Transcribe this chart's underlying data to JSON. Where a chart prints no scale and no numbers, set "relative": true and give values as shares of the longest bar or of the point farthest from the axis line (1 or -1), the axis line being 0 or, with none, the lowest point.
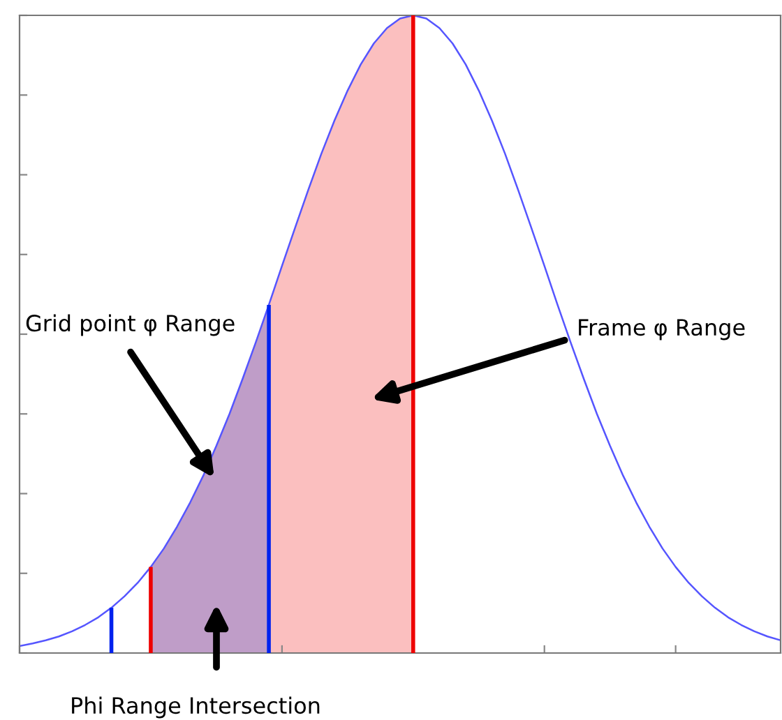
{
  "chart_data": {
    "type": "line",
    "relative": true,
    "legend": false,
    "grid": false,
    "categories": [
      null,
      null,
      null,
      null,
      null,
      null,
      null,
      null,
      null,
      null,
      null,
      null,
      null,
      null,
      null,
      null,
      null,
      null,
      null,
      null,
      null,
      null,
      null,
      null,
      null,
      null,
      null,
      null,
      null,
      null,
      null,
      null,
      null,
      null,
      null,
      null,
      null,
      null,
      null,
      null,
      null,
      null,
      null,
      null,
      null,
      null,
      null,
      null,
      null,
      null,
      null,
      null,
      null,
      null,
      null,
      null,
      null,
      null,
      null
    ],
    "series": [
      {
        "type": "area",
        "color": "#fbbfbf",
        "values": [
          null,
          null,
          null,
          null,
          null,
          null,
          null,
          null,
          null,
          null,
          0.135,
          0.164,
          0.198,
          0.236,
          0.278,
          0.325,
          0.375,
          0.43,
          0.487,
          0.546,
          0.607,
          0.667,
          0.726,
          0.783,
          0.835,
          0.882,
          0.923,
          0.956,
          0.98,
          0.995,
          1,
          null,
          null,
          null,
          null,
          null,
          null,
          null,
          null,
          null,
          null,
          null,
          null,
          null,
          null,
          null,
          null,
          null,
          null,
          null,
          null,
          null,
          null,
          null,
          null,
          null,
          null,
          null,
          null
        ]
      },
      {
        "type": "area",
        "color": "#bf9dc8",
        "values": [
          null,
          null,
          null,
          null,
          null,
          null,
          null,
          null,
          null,
          null,
          0.135,
          0.164,
          0.198,
          0.236,
          0.278,
          0.325,
          0.375,
          0.43,
          0.487,
          0.546,
          null,
          null,
          null,
          null,
          null,
          null,
          null,
          null,
          null,
          null,
          null,
          null,
          null,
          null,
          null,
          null,
          null,
          null,
          null,
          null,
          null,
          null,
          null,
          null,
          null,
          null,
          null,
          null,
          null,
          null,
          null,
          null,
          null,
          null,
          null,
          null,
          null,
          null,
          null
        ]
      },
      {
        "color": "#5555ff",
        "values": [
          0.011,
          0.015,
          0.02,
          0.026,
          0.034,
          0.044,
          0.056,
          0.071,
          0.089,
          0.11,
          0.135,
          0.164,
          0.198,
          0.236,
          0.278,
          0.325,
          0.375,
          0.43,
          0.487,
          0.546,
          0.607,
          0.667,
          0.726,
          0.783,
          0.835,
          0.882,
          0.923,
          0.956,
          0.98,
          0.995,
          1,
          0.995,
          0.98,
          0.956,
          0.923,
          0.882,
          0.835,
          0.783,
          0.726,
          0.667,
          0.607,
          0.546,
          0.487,
          0.43,
          0.375,
          0.325,
          0.278,
          0.236,
          0.198,
          0.164,
          0.135,
          0.11,
          0.089,
          0.071,
          0.056,
          0.044,
          0.034,
          0.026,
          0.02
        ],
        "colors": [
          null,
          null,
          null,
          null,
          null,
          null,
          null,
          "#0022ee",
          null,
          null,
          "#ee0000",
          null,
          null,
          null,
          null,
          null,
          null,
          null,
          null,
          "#0022ee",
          null,
          null,
          null,
          null,
          null,
          null,
          null,
          null,
          null,
          null,
          "#ee0000",
          null,
          null,
          null,
          null,
          null,
          null,
          null,
          null,
          null,
          null,
          null,
          null,
          null,
          null,
          null,
          null,
          null,
          null,
          null,
          null,
          null,
          null,
          null,
          null,
          null,
          null,
          null,
          null
        ]
      }
    ],
    "annotations": [
      "Grid point φ Range",
      "Frame φ Range",
      "Phi Range Intersection"
    ]
  }
}
